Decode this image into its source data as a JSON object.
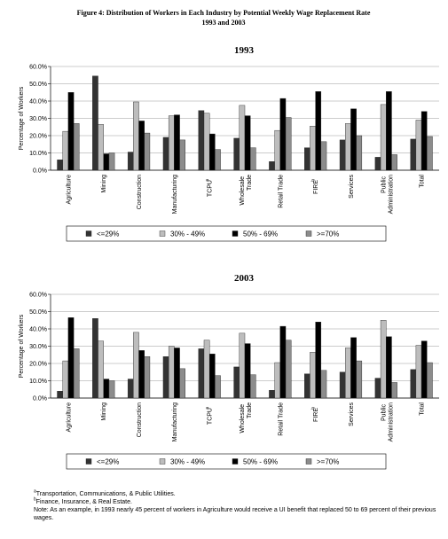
{
  "header": {
    "title": "Figure 4: Distribution of Workers in Each Industry by Potential Weekly Wage Replacement Rate",
    "subtitle": "1993 and 2003"
  },
  "chart_data": [
    {
      "type": "bar",
      "title": "1993",
      "ylabel": "Percentage of Workers",
      "categories": [
        "Agriculture",
        "Mining",
        "Construction",
        "Manufacturing",
        "TCPU",
        "Wholesale Trade",
        "Retail Trade",
        "FIRE",
        "Services",
        "Public Administration",
        "Total"
      ],
      "category_notes": {
        "4": "a",
        "7": "b"
      },
      "series": [
        {
          "name": "<=29%",
          "color": "#333333",
          "values": [
            6,
            54.5,
            10.5,
            19,
            34.5,
            18.5,
            5,
            13,
            17.5,
            7.5,
            18
          ]
        },
        {
          "name": "30% - 49%",
          "color": "#bdbdbd",
          "values": [
            22.5,
            26.5,
            39.5,
            31.5,
            33,
            37.5,
            23,
            25.5,
            27,
            38,
            29
          ]
        },
        {
          "name": "50% - 69%",
          "color": "#000000",
          "values": [
            45,
            9.5,
            28.5,
            32,
            21,
            31.5,
            41.5,
            45.5,
            35.5,
            45.5,
            34
          ]
        },
        {
          "name": ">=70%",
          "color": "#8c8c8c",
          "values": [
            27,
            10,
            21.5,
            17.5,
            12,
            13,
            30.5,
            16.5,
            20,
            9,
            19.5
          ]
        }
      ],
      "ylim": [
        0,
        60
      ],
      "yticks": [
        {
          "value": 0,
          "label": "0.0%"
        },
        {
          "value": 10,
          "label": "10.0%"
        },
        {
          "value": 20,
          "label": "20.0%"
        },
        {
          "value": 30,
          "label": "30.0%"
        },
        {
          "value": 40,
          "label": "40.0%"
        },
        {
          "value": 50,
          "label": "50.0%"
        },
        {
          "value": 60,
          "label": "60.0%"
        }
      ],
      "grid": true,
      "legend": "bottom"
    },
    {
      "type": "bar",
      "title": "2003",
      "ylabel": "Percentage of Workers",
      "categories": [
        "Agriculture",
        "Mining",
        "Construction",
        "Manufacturing",
        "TCPU",
        "Wholesale Trade",
        "Retail Trade",
        "FIRE",
        "Services",
        "Public Administration",
        "Total"
      ],
      "category_notes": {
        "4": "a",
        "7": "b"
      },
      "series": [
        {
          "name": "<=29%",
          "color": "#333333",
          "values": [
            4,
            46,
            11,
            24,
            28.5,
            18,
            4.5,
            14,
            15,
            11.5,
            16.5
          ]
        },
        {
          "name": "30% - 49%",
          "color": "#bdbdbd",
          "values": [
            21.5,
            33,
            38,
            30,
            33.5,
            37.5,
            20.5,
            26.5,
            29,
            45,
            30.5
          ]
        },
        {
          "name": "50% - 69%",
          "color": "#000000",
          "values": [
            46.5,
            11,
            27.5,
            29,
            25.5,
            31.5,
            41.5,
            44,
            35,
            35.5,
            33
          ]
        },
        {
          "name": ">=70%",
          "color": "#8c8c8c",
          "values": [
            28.5,
            10,
            24,
            17,
            13,
            13.5,
            33.5,
            16,
            21.5,
            9,
            20.5
          ]
        }
      ],
      "ylim": [
        0,
        60
      ],
      "yticks": [
        {
          "value": 0,
          "label": "0.0%"
        },
        {
          "value": 10,
          "label": "10.0%"
        },
        {
          "value": 20,
          "label": "20.0%"
        },
        {
          "value": 30,
          "label": "30.0%"
        },
        {
          "value": 40,
          "label": "40.0%"
        },
        {
          "value": 50,
          "label": "50.0%"
        },
        {
          "value": 60,
          "label": "60.0%"
        }
      ],
      "grid": true,
      "legend": "bottom"
    }
  ],
  "footnotes": [
    {
      "mark": "a",
      "text": "Transportation, Communications, & Public Utilities."
    },
    {
      "mark": "b",
      "text": "Finance, Insurance, & Real Estate."
    }
  ],
  "note": "Note: As an example, in 1993 nearly 45 percent of workers in Agriculture would receive a UI benefit that replaced 50 to 69 percent of their previous wages."
}
